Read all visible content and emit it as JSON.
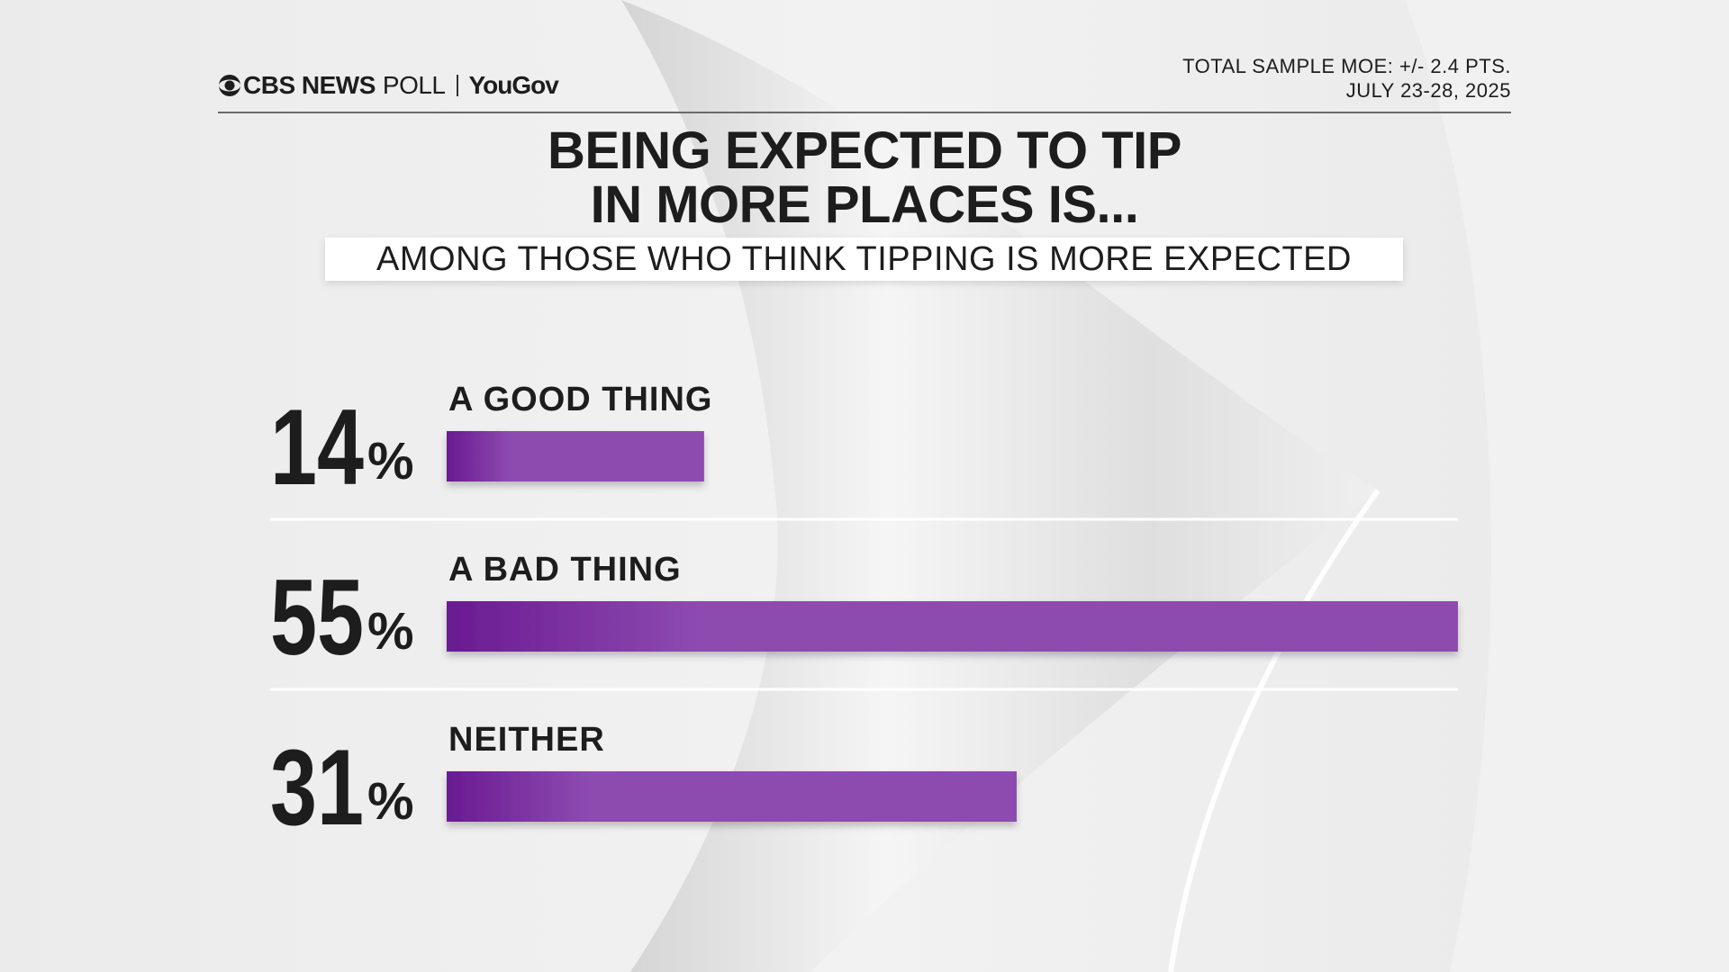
{
  "header": {
    "brand_main": "CBS NEWS",
    "brand_poll": "POLL",
    "brand_partner": "YouGov",
    "moe_line1": "TOTAL SAMPLE MOE: +/- 2.4 PTS.",
    "moe_line2": "JULY 23-28, 2025"
  },
  "chart_data": {
    "type": "bar",
    "orientation": "horizontal",
    "title_line1": "BEING EXPECTED TO TIP",
    "title_line2": "IN MORE PLACES IS...",
    "subtitle": "AMONG THOSE WHO THINK TIPPING IS MORE EXPECTED",
    "categories": [
      "A GOOD THING",
      "A BAD THING",
      "NEITHER"
    ],
    "values": [
      14,
      55,
      31
    ],
    "value_suffix": "%",
    "bar_color_dark": "#6a1a92",
    "bar_color": "#8d4bb0",
    "xlim": [
      0,
      55
    ],
    "grid": false
  }
}
